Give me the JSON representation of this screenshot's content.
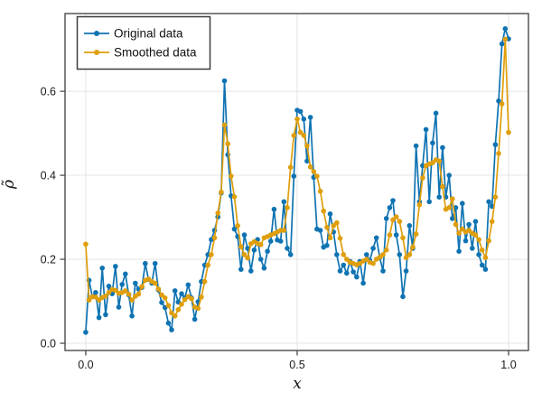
{
  "chart_data": {
    "type": "line",
    "title": "",
    "xlabel": "x",
    "ylabel": "ρ̃",
    "xlim": [
      -0.049,
      1.047
    ],
    "ylim": [
      -0.0172,
      0.7852
    ],
    "grid": true,
    "legend_position": "top-left",
    "colors": {
      "series1": "#0f73b2",
      "series2": "#df9e0b",
      "axis_frame": "#4a4a4a",
      "tick": "#3c3c3c",
      "grid": "#e4e4e4",
      "legend_border": "#3c3c3c",
      "background": "#ffffff"
    },
    "x_ticks": {
      "values": [
        0.0,
        0.5,
        1.0
      ],
      "labels": [
        "0.0",
        "0.5",
        "1.0"
      ]
    },
    "y_ticks": {
      "values": [
        0.0,
        0.2,
        0.4,
        0.6
      ],
      "labels": [
        "0.0",
        "0.2",
        "0.4",
        "0.6"
      ]
    },
    "x_start": 0,
    "x_step": 0.0078125,
    "n_points": 129,
    "series": [
      {
        "name": "Original data",
        "color": "#0f73b2",
        "marker": "circle",
        "values": [
          0.026,
          0.15,
          0.111,
          0.121,
          0.061,
          0.179,
          0.068,
          0.136,
          0.118,
          0.183,
          0.086,
          0.14,
          0.165,
          0.115,
          0.065,
          0.143,
          0.129,
          0.133,
          0.19,
          0.152,
          0.143,
          0.19,
          0.127,
          0.097,
          0.085,
          0.048,
          0.032,
          0.125,
          0.098,
          0.118,
          0.108,
          0.139,
          0.108,
          0.057,
          0.099,
          0.147,
          0.186,
          0.211,
          0.247,
          0.269,
          0.301,
          0.358,
          0.625,
          0.449,
          0.351,
          0.272,
          0.254,
          0.176,
          0.258,
          0.226,
          0.172,
          0.222,
          0.247,
          0.2,
          0.179,
          0.219,
          0.243,
          0.319,
          0.246,
          0.243,
          0.337,
          0.226,
          0.211,
          0.398,
          0.555,
          0.552,
          0.534,
          0.434,
          0.538,
          0.395,
          0.272,
          0.269,
          0.229,
          0.233,
          0.308,
          0.265,
          0.211,
          0.172,
          0.186,
          0.167,
          0.195,
          0.17,
          0.158,
          0.195,
          0.143,
          0.211,
          0.197,
          0.226,
          0.251,
          0.204,
          0.172,
          0.297,
          0.323,
          0.34,
          0.258,
          0.211,
          0.111,
          0.172,
          0.28,
          0.226,
          0.47,
          0.337,
          0.423,
          0.509,
          0.337,
          0.477,
          0.548,
          0.348,
          0.466,
          0.348,
          0.4,
          0.297,
          0.323,
          0.219,
          0.333,
          0.244,
          0.283,
          0.226,
          0.29,
          0.211,
          0.186,
          0.176,
          0.337,
          0.326,
          0.473,
          0.577,
          0.713,
          0.749,
          0.725
        ]
      },
      {
        "name": "Smoothed data",
        "color": "#df9e0b",
        "marker": "circle",
        "values": [
          0.236,
          0.103,
          0.111,
          0.11,
          0.103,
          0.109,
          0.112,
          0.121,
          0.128,
          0.126,
          0.119,
          0.121,
          0.125,
          0.117,
          0.103,
          0.112,
          0.117,
          0.135,
          0.15,
          0.153,
          0.147,
          0.143,
          0.129,
          0.115,
          0.108,
          0.09,
          0.072,
          0.065,
          0.08,
          0.093,
          0.104,
          0.111,
          0.106,
          0.086,
          0.083,
          0.11,
          0.147,
          0.186,
          0.211,
          0.251,
          0.31,
          0.36,
          0.52,
          0.475,
          0.398,
          0.349,
          0.28,
          0.23,
          0.211,
          0.203,
          0.237,
          0.242,
          0.238,
          0.235,
          0.251,
          0.254,
          0.258,
          0.261,
          0.265,
          0.269,
          0.269,
          0.323,
          0.419,
          0.495,
          0.534,
          0.502,
          0.495,
          0.47,
          0.42,
          0.409,
          0.398,
          0.362,
          0.315,
          0.276,
          0.251,
          0.28,
          0.287,
          0.25,
          0.211,
          0.2,
          0.193,
          0.19,
          0.187,
          0.19,
          0.196,
          0.2,
          0.193,
          0.19,
          0.2,
          0.205,
          0.211,
          0.222,
          0.258,
          0.294,
          0.301,
          0.29,
          0.251,
          0.204,
          0.211,
          0.229,
          0.26,
          0.33,
          0.394,
          0.423,
          0.427,
          0.43,
          0.437,
          0.434,
          0.373,
          0.319,
          0.323,
          0.344,
          0.283,
          0.262,
          0.272,
          0.265,
          0.269,
          0.262,
          0.258,
          0.247,
          0.222,
          0.204,
          0.244,
          0.29,
          0.348,
          0.452,
          0.57,
          0.724,
          0.502
        ]
      }
    ]
  }
}
